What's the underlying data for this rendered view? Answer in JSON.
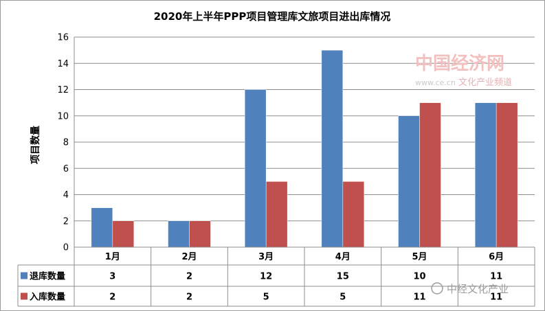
{
  "chart_data": {
    "type": "bar",
    "title": "2020年上半年PPP项目管理库文旅项目进出库情况",
    "ylabel": "项目数量",
    "xlabel": "",
    "categories": [
      "1月",
      "2月",
      "3月",
      "4月",
      "5月",
      "6月"
    ],
    "series": [
      {
        "name": "退库数量",
        "values": [
          3,
          2,
          12,
          15,
          10,
          11
        ],
        "color": "#4f81bd"
      },
      {
        "name": "入库数量",
        "values": [
          2,
          2,
          5,
          5,
          11,
          11
        ],
        "color": "#c0504d"
      }
    ],
    "ylim": [
      0,
      16
    ],
    "yticks": [
      0,
      2,
      4,
      6,
      8,
      10,
      12,
      14,
      16
    ],
    "grid": true,
    "legend": "data-table"
  },
  "watermark": {
    "brand": "中国经济网",
    "url": "www.ce.cn",
    "channel": "文化产业频道",
    "account": "中经文化产业"
  }
}
